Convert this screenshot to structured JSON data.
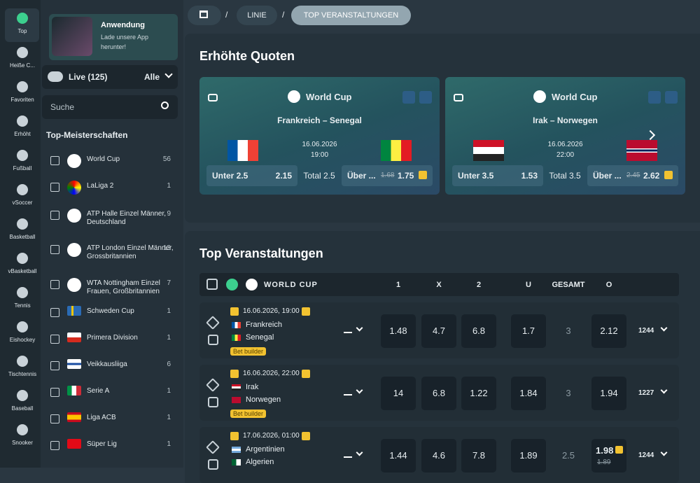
{
  "nav": [
    "Top",
    "Heiße C...",
    "Favoriten",
    "Erhöht",
    "Fußball",
    "vSoccer",
    "Basketball",
    "vBasketball",
    "Tennis",
    "Eishockey",
    "Tischtennis",
    "Baseball",
    "Snooker"
  ],
  "app_banner": {
    "title": "Anwendung",
    "text": "Lade unsere App herunter!"
  },
  "live": {
    "label": "Live (125)",
    "filter": "Alle"
  },
  "search": {
    "placeholder": "Suche"
  },
  "championships": {
    "title": "Top-Meisterschaften",
    "items": [
      {
        "name": "World Cup",
        "count": 56
      },
      {
        "name": "LaLiga 2",
        "count": 1
      },
      {
        "name": "ATP Halle Einzel Männer, Deutschland",
        "count": 9
      },
      {
        "name": "ATP London Einzel Männer, Grossbritannien",
        "count": 13
      },
      {
        "name": "WTA Nottingham Einzel Frauen, Großbritannien",
        "count": 7
      },
      {
        "name": "Schweden Cup",
        "count": 1
      },
      {
        "name": "Primera Division",
        "count": 1
      },
      {
        "name": "Veikkausliiga",
        "count": 6
      },
      {
        "name": "Serie A",
        "count": 1
      },
      {
        "name": "Liga ACB",
        "count": 1
      },
      {
        "name": "Süper Lig",
        "count": 1
      }
    ]
  },
  "breadcrumb": {
    "separator": "/",
    "items": [
      "LINIE",
      "TOP VERANSTALTUNGEN"
    ]
  },
  "boosted": {
    "title": "Erhöhte Quoten",
    "cards": [
      {
        "league": "World Cup",
        "match": "Frankreich – Senegal",
        "date": "16.06.2026",
        "time": "19:00",
        "under": {
          "label": "Unter 2.5",
          "value": 2.15
        },
        "total": "Total 2.5",
        "over": {
          "label": "Über ...",
          "old": 1.68,
          "value": 1.75
        }
      },
      {
        "league": "World Cup",
        "match": "Irak – Norwegen",
        "date": "16.06.2026",
        "time": "22:00",
        "under": {
          "label": "Unter 3.5",
          "value": 1.53
        },
        "total": "Total 3.5",
        "over": {
          "label": "Über ...",
          "old": 2.45,
          "value": 2.62
        }
      }
    ]
  },
  "events": {
    "title": "Top Veranstaltungen",
    "league": "WORLD CUP",
    "columns": [
      "1",
      "X",
      "2",
      "U",
      "GESAMT",
      "O"
    ],
    "rows": [
      {
        "date": "16.06.2026, 19:00",
        "teams": [
          "Frankreich",
          "Senegal"
        ],
        "badge": "Bet builder",
        "odds": [
          1.48,
          4.7,
          6.8
        ],
        "u": 1.7,
        "total": 3,
        "o": 2.12,
        "more": 1244
      },
      {
        "date": "16.06.2026, 22:00",
        "teams": [
          "Irak",
          "Norwegen"
        ],
        "badge": "Bet builder",
        "odds": [
          14,
          6.8,
          1.22
        ],
        "u": 1.84,
        "total": 3,
        "o": 1.94,
        "more": 1227
      },
      {
        "date": "17.06.2026, 01:00",
        "teams": [
          "Argentinien",
          "Algerien"
        ],
        "odds": [
          1.44,
          4.6,
          7.8
        ],
        "u": 1.89,
        "total": 2.5,
        "o": 1.98,
        "o_old": 1.89,
        "more": 1244
      }
    ]
  }
}
